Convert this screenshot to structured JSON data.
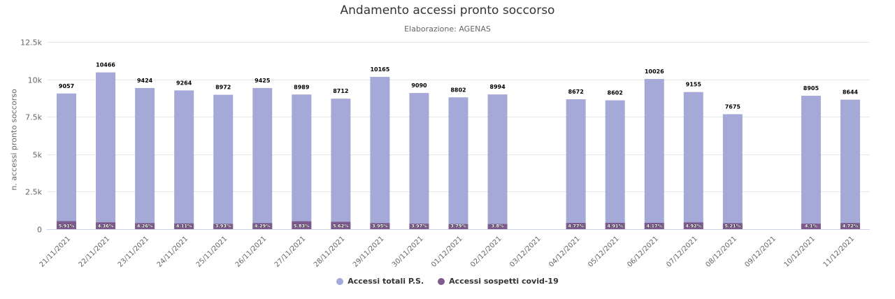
{
  "chart_data": {
    "type": "bar",
    "stacking": "overlap",
    "title": "Andamento accessi pronto soccorso",
    "subtitle": "Elaborazione: AGENAS",
    "xlabel": "",
    "ylabel": "n. accessi pronto soccorso",
    "ylim": [
      0,
      12500
    ],
    "yticks": [
      0,
      2500,
      5000,
      7500,
      10000,
      12500
    ],
    "ytick_labels": [
      "0",
      "2.5k",
      "5k",
      "7.5k",
      "10k",
      "12.5k"
    ],
    "grid": true,
    "legend_position": "bottom",
    "categories": [
      "21/11/2021",
      "22/11/2021",
      "23/11/2021",
      "24/11/2021",
      "25/11/2021",
      "26/11/2021",
      "27/11/2021",
      "28/11/2021",
      "29/11/2021",
      "30/11/2021",
      "01/12/2021",
      "02/12/2021",
      "03/12/2021",
      "04/12/2021",
      "05/12/2021",
      "06/12/2021",
      "07/12/2021",
      "08/12/2021",
      "09/12/2021",
      "10/12/2021",
      "11/12/2021"
    ],
    "series": [
      {
        "name": "Accessi totali P.S.",
        "color": "#a5a9d8",
        "values": [
          9057,
          10466,
          9424,
          9264,
          8972,
          9425,
          8989,
          8712,
          10165,
          9090,
          8802,
          8994,
          null,
          8672,
          8602,
          10026,
          9155,
          7675,
          null,
          8905,
          8644
        ]
      },
      {
        "name": "Accessi sospetti covid-19",
        "color": "#7f5a8e",
        "values": [
          535,
          456,
          401,
          381,
          353,
          404,
          524,
          490,
          402,
          361,
          334,
          342,
          null,
          414,
          422,
          418,
          450,
          400,
          null,
          365,
          408
        ],
        "labels": [
          "5.91%",
          "4.36%",
          "4.26%",
          "4.11%",
          "3.93%",
          "4.29%",
          "5.83%",
          "5.62%",
          "3.95%",
          "3.97%",
          "3.79%",
          "3.8%",
          null,
          "4.77%",
          "4.91%",
          "4.17%",
          "4.92%",
          "5.21%",
          null,
          "4.1%",
          "4.72%"
        ]
      }
    ]
  },
  "header": {
    "title": "Andamento accessi pronto soccorso",
    "subtitle": "Elaborazione: AGENAS"
  },
  "axis": {
    "ylabel": "n. accessi pronto soccorso"
  },
  "legend": {
    "items": [
      {
        "label": "Accessi totali P.S.",
        "color": "#a5a9d8"
      },
      {
        "label": "Accessi sospetti covid-19",
        "color": "#7f5a8e"
      }
    ]
  }
}
